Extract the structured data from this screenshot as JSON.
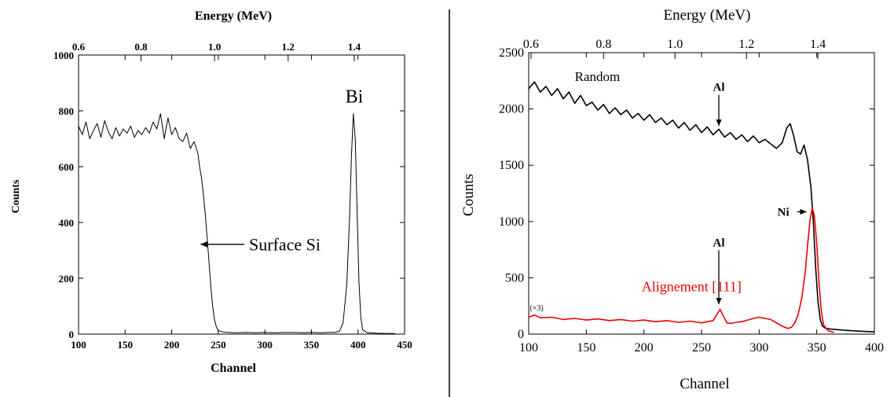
{
  "chart_data": [
    {
      "type": "line",
      "title": "",
      "xlabel": "Channel",
      "ylabel": "Counts",
      "top_axis_label": "Energy (MeV)",
      "xlim": [
        100,
        450
      ],
      "ylim": [
        0,
        1000
      ],
      "x_ticks": [
        100,
        150,
        200,
        250,
        300,
        350,
        400,
        450
      ],
      "y_ticks": [
        0,
        200,
        400,
        600,
        800,
        1000
      ],
      "top_ticks": [
        {
          "label": "0.6",
          "channel": 100
        },
        {
          "label": "0.8",
          "channel": 167
        },
        {
          "label": "1.0",
          "channel": 246
        },
        {
          "label": "1.2",
          "channel": 325
        },
        {
          "label": "1.4",
          "channel": 396
        }
      ],
      "grid": false,
      "series": [
        {
          "color": "#000000",
          "x": [
            100,
            104,
            108,
            112,
            116,
            120,
            124,
            128,
            132,
            136,
            140,
            144,
            148,
            152,
            156,
            160,
            164,
            168,
            172,
            176,
            180,
            184,
            188,
            192,
            196,
            200,
            204,
            208,
            212,
            216,
            220,
            224,
            228,
            230,
            232,
            234,
            236,
            238,
            240,
            242,
            244,
            246,
            248,
            250,
            255,
            260,
            270,
            280,
            290,
            300,
            310,
            320,
            330,
            340,
            350,
            360,
            370,
            375,
            380,
            384,
            388,
            391,
            393,
            395,
            397,
            399,
            401,
            403,
            405,
            410,
            420,
            430,
            440
          ],
          "y": [
            745,
            715,
            760,
            700,
            730,
            755,
            705,
            765,
            725,
            700,
            740,
            710,
            735,
            720,
            745,
            705,
            730,
            715,
            740,
            720,
            760,
            735,
            790,
            700,
            775,
            715,
            740,
            700,
            690,
            720,
            665,
            690,
            650,
            600,
            560,
            500,
            430,
            350,
            260,
            170,
            100,
            50,
            25,
            12,
            8,
            6,
            5,
            6,
            5,
            6,
            5,
            6,
            6,
            5,
            6,
            5,
            6,
            6,
            10,
            40,
            180,
            420,
            640,
            790,
            700,
            450,
            190,
            60,
            15,
            5,
            3,
            2,
            2
          ]
        }
      ],
      "annotations": [
        {
          "text": "Bi",
          "x": 396,
          "y": 830
        },
        {
          "text": "Surface Si",
          "x": 283,
          "y": 300,
          "arrow_to": [
            231,
            310
          ]
        }
      ]
    },
    {
      "type": "line",
      "title": "",
      "xlabel": "Channel",
      "ylabel": "Counts",
      "top_axis_label": "Energy (MeV)",
      "xlim": [
        100,
        400
      ],
      "ylim": [
        0,
        2500
      ],
      "x_ticks": [
        100,
        150,
        200,
        250,
        300,
        350,
        400
      ],
      "y_ticks": [
        0,
        500,
        1000,
        1500,
        2000,
        2500
      ],
      "top_ticks": [
        {
          "label": "0.6",
          "channel": 102
        },
        {
          "label": "0.8",
          "channel": 165
        },
        {
          "label": "1.0",
          "channel": 227
        },
        {
          "label": "1.2",
          "channel": 289
        },
        {
          "label": "1.4",
          "channel": 351
        }
      ],
      "grid": false,
      "series": [
        {
          "name": "Random",
          "color": "#000000",
          "x": [
            100,
            105,
            110,
            115,
            120,
            125,
            130,
            135,
            140,
            145,
            150,
            155,
            160,
            165,
            170,
            175,
            180,
            185,
            190,
            195,
            200,
            205,
            210,
            215,
            220,
            225,
            230,
            235,
            240,
            245,
            250,
            255,
            260,
            265,
            270,
            275,
            280,
            285,
            290,
            295,
            300,
            305,
            310,
            315,
            320,
            324,
            327,
            330,
            333,
            336,
            339,
            342,
            345,
            347,
            349,
            351,
            353,
            355,
            358,
            362,
            370,
            380,
            390,
            400
          ],
          "y": [
            2180,
            2240,
            2150,
            2200,
            2120,
            2180,
            2090,
            2150,
            2050,
            2120,
            2030,
            2060,
            1990,
            2040,
            1960,
            2010,
            1950,
            1990,
            1920,
            1960,
            1900,
            1950,
            1880,
            1920,
            1860,
            1900,
            1830,
            1880,
            1810,
            1860,
            1790,
            1840,
            1770,
            1820,
            1750,
            1790,
            1730,
            1770,
            1710,
            1760,
            1700,
            1730,
            1690,
            1650,
            1700,
            1830,
            1870,
            1760,
            1620,
            1600,
            1680,
            1550,
            1300,
            1000,
            600,
            300,
            130,
            70,
            50,
            45,
            38,
            30,
            25,
            20
          ]
        },
        {
          "name": "Alignement [111]",
          "color": "#ee0000",
          "x": [
            100,
            105,
            110,
            120,
            130,
            140,
            150,
            160,
            170,
            180,
            190,
            200,
            210,
            220,
            230,
            240,
            250,
            255,
            260,
            263,
            266,
            269,
            272,
            276,
            280,
            285,
            290,
            295,
            300,
            305,
            310,
            315,
            320,
            325,
            328,
            331,
            334,
            337,
            340,
            342,
            344,
            346,
            348,
            350,
            352,
            354,
            356,
            360,
            365
          ],
          "y": [
            150,
            170,
            145,
            150,
            130,
            140,
            125,
            135,
            120,
            130,
            115,
            125,
            110,
            120,
            105,
            115,
            100,
            110,
            120,
            170,
            220,
            160,
            100,
            95,
            105,
            110,
            125,
            140,
            150,
            140,
            130,
            100,
            70,
            50,
            60,
            100,
            180,
            320,
            550,
            780,
            1000,
            1120,
            1050,
            800,
            450,
            200,
            80,
            30,
            15
          ]
        }
      ],
      "annotations": [
        {
          "text": "Random",
          "x": 140,
          "y": 2250
        },
        {
          "text": "Al",
          "x": 265,
          "y": 2160,
          "arrow_to": [
            265,
            1850
          ]
        },
        {
          "text": "Ni",
          "x": 321,
          "y": 1050,
          "arrow_to": [
            341,
            1050
          ]
        },
        {
          "text": "Al",
          "x": 265,
          "y": 780,
          "arrow_to": [
            265,
            265
          ]
        },
        {
          "text": "Alignement [111]",
          "x": 198,
          "y": 380
        },
        {
          "text": "(×3)",
          "x": 101,
          "y": 210
        }
      ]
    }
  ]
}
